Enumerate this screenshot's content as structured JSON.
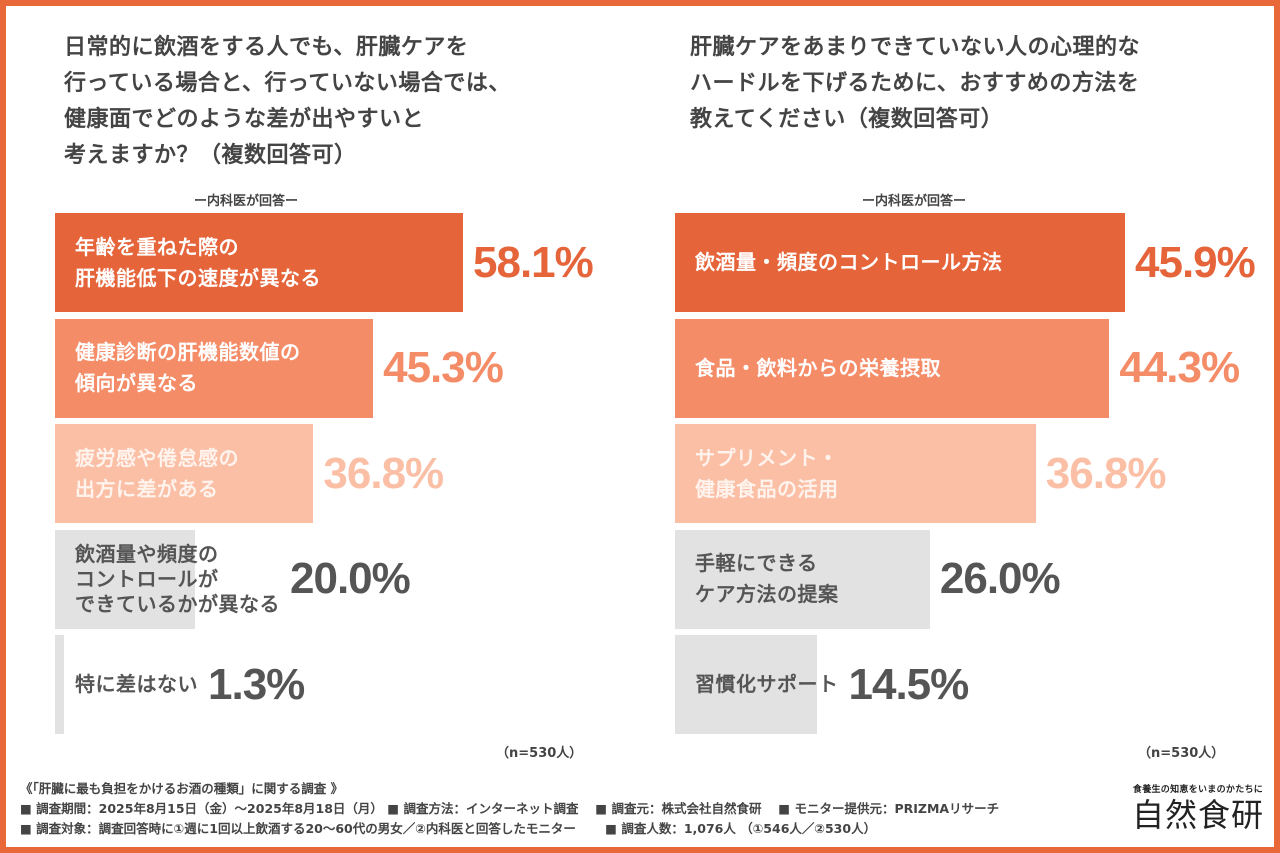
{
  "chart_data": [
    {
      "type": "bar",
      "orientation": "horizontal",
      "title": "日常的に飲酒をする人でも、肝臓ケアを\n行っている場合と、行っていない場合では、\n健康面でどのような差が出やすいと\n考えますか？（複数回答可）",
      "subtitle": "ー内科医が回答ー",
      "categories": [
        "年齢を重ねた際の\n肝機能低下の速度が異なる",
        "健康診断の肝機能数値の\n傾向が異なる",
        "疲労感や倦怠感の\n出方に差がある",
        "飲酒量や頻度の\nコントロールが\nできているかが異なる",
        "特に差はない"
      ],
      "values": [
        58.1,
        45.3,
        36.8,
        20.0,
        1.3
      ],
      "value_labels": [
        "58.1%",
        "45.3%",
        "36.8%",
        "20.0%",
        "1.3%"
      ],
      "unit": "%",
      "note": "（n=530人）",
      "xlim": [
        0,
        58.1
      ]
    },
    {
      "type": "bar",
      "orientation": "horizontal",
      "title": "肝臓ケアをあまりできていない人の心理的な\nハードルを下げるために、おすすめの方法を\n教えてください（複数回答可）",
      "subtitle": "ー内科医が回答ー",
      "categories": [
        "飲酒量・頻度のコントロール方法",
        "食品・飲料からの栄養摂取",
        "サプリメント・\n健康食品の活用",
        "手軽にできる\nケア方法の提案",
        "習慣化サポート"
      ],
      "values": [
        45.9,
        44.3,
        36.8,
        26.0,
        14.5
      ],
      "value_labels": [
        "45.9%",
        "44.3%",
        "36.8%",
        "26.0%",
        "14.5%"
      ],
      "unit": "%",
      "note": "（n=530人）",
      "xlim": [
        0,
        45.9
      ]
    }
  ],
  "colors": {
    "frame": "#e8683a",
    "bar_colors": [
      "#e5643a",
      "#f58c68",
      "#fbbfa6",
      "#e2e2e2",
      "#e2e2e2"
    ],
    "label_colors": [
      "#ffffff",
      "#ffffff",
      "#fff3ee",
      "#555555",
      "#555555"
    ],
    "value_colors": [
      "#e5643a",
      "#f58c68",
      "#fbbfa6",
      "#555555",
      "#555555"
    ]
  },
  "footer": {
    "lines": [
      "《「肝臓に最も負担をかけるお酒の種類」に関する調査 》",
      "■ 調査期間：2025年8月15日（金）〜2025年8月18日（月） ■ 調査方法：インターネット調査　 ■ 調査元：株式会社自然食研　 ■ モニター提供元：PRIZMAリサーチ",
      "■ 調査対象：調査回答時に①週に1回以上飲酒する20〜60代の男女／②内科医と回答したモニター　　 ■ 調査人数：1,076人 （①546人／②530人）"
    ]
  },
  "logo": {
    "tagline": "食養生の知恵をいまのかたちに",
    "name": "自然食研"
  }
}
